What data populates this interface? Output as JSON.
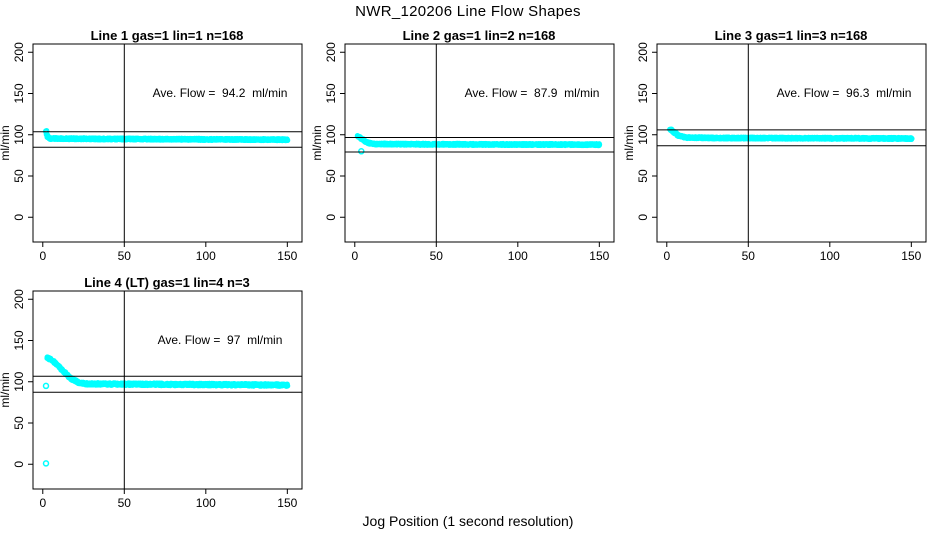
{
  "page": {
    "main_title": "NWR_120206  Line Flow Shapes",
    "outer_xlabel": "Jog Position (1 second resolution)",
    "background_color": "#ffffff",
    "axis_color": "#000000",
    "point_color": "#00FFFF"
  },
  "chart_data": {
    "type": "scatter",
    "title": "NWR_120206  Line Flow Shapes",
    "xlabel": "Jog Position (1 second resolution)",
    "ylabel": "ml/min",
    "xlim": [
      -6,
      159
    ],
    "ylim": [
      -30,
      210
    ],
    "xticks": [
      0,
      50,
      100,
      150
    ],
    "yticks": [
      0,
      50,
      100,
      150,
      200
    ],
    "grid": false,
    "vline_x": 50,
    "marker": "open-circle",
    "marker_color": "#00FFFF",
    "annotation_anchor": {
      "x": 109,
      "y": 150
    },
    "panels": [
      {
        "title": "Line 1 gas=1 lin=1 n=168",
        "annotation": "Ave. Flow =  94.2  ml/min",
        "ave_flow": 94.2,
        "n": 168,
        "hlines": [
          103.6,
          84.8
        ],
        "profile": [
          [
            2,
            104
          ],
          [
            2.6,
            99
          ],
          [
            4,
            95.5
          ],
          [
            30,
            95
          ],
          [
            150,
            94
          ]
        ],
        "jitter": 1.0,
        "reps": 4,
        "outliers": []
      },
      {
        "title": "Line 2 gas=1 lin=2 n=168",
        "annotation": "Ave. Flow =  87.9  ml/min",
        "ave_flow": 87.9,
        "n": 168,
        "hlines": [
          96.7,
          79.1
        ],
        "profile": [
          [
            2,
            98
          ],
          [
            4,
            95.5
          ],
          [
            7,
            91
          ],
          [
            11,
            89
          ],
          [
            30,
            88.5
          ],
          [
            150,
            88
          ]
        ],
        "jitter": 1.0,
        "reps": 4,
        "outliers": [
          [
            4,
            80
          ]
        ]
      },
      {
        "title": "Line 3 gas=1 lin=3 n=168",
        "annotation": "Ave. Flow =  96.3  ml/min",
        "ave_flow": 96.3,
        "n": 168,
        "hlines": [
          105.9,
          86.7
        ],
        "profile": [
          [
            2,
            107
          ],
          [
            4,
            104
          ],
          [
            7,
            99
          ],
          [
            12,
            96.5
          ],
          [
            40,
            96
          ],
          [
            150,
            95.5
          ]
        ],
        "jitter": 1.0,
        "reps": 4,
        "outliers": []
      },
      {
        "title": "Line 4 (LT) gas=1 lin=4 n=3",
        "annotation": "Ave. Flow =  97  ml/min",
        "ave_flow": 97,
        "n": 3,
        "hlines": [
          106.7,
          87.3
        ],
        "profile": [
          [
            3,
            129
          ],
          [
            6,
            126
          ],
          [
            10,
            118
          ],
          [
            14,
            110
          ],
          [
            18,
            103
          ],
          [
            22,
            99
          ],
          [
            27,
            97.5
          ],
          [
            60,
            97
          ],
          [
            150,
            96
          ]
        ],
        "jitter": 1.4,
        "reps": 3,
        "outliers": [
          [
            2,
            95
          ],
          [
            2,
            1
          ]
        ]
      }
    ]
  }
}
